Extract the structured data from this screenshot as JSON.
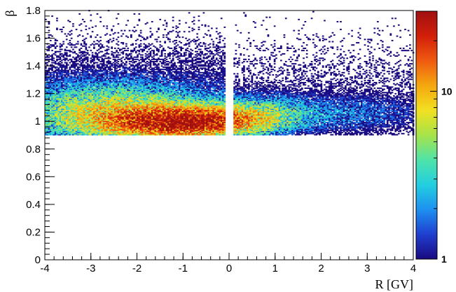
{
  "chart_data": {
    "type": "heatmap",
    "title": "",
    "xlabel": "R [GV]",
    "ylabel": "β",
    "xlim": [
      -4,
      4
    ],
    "ylim": [
      0,
      1.8
    ],
    "x_ticks": [
      -4,
      -3,
      -2,
      -1,
      0,
      1,
      2,
      3,
      4
    ],
    "y_ticks": [
      0,
      0.2,
      0.4,
      0.6,
      0.8,
      1,
      1.2,
      1.4,
      1.6,
      1.8
    ],
    "x_tick_labels": [
      "-4",
      "-3",
      "-2",
      "-1",
      "0",
      "1",
      "2",
      "3",
      "4"
    ],
    "y_tick_labels": [
      "0",
      "0.2",
      "0.4",
      "0.6",
      "0.8",
      "1",
      "1.2",
      "1.4",
      "1.6",
      "1.8"
    ],
    "z_scale": "log",
    "z_range": [
      1,
      30
    ],
    "colorbar_ticks": [
      1,
      10
    ],
    "colorbar_tick_labels": [
      "1",
      "10"
    ],
    "colormap": [
      "#1a0a80",
      "#1f3fd0",
      "#1e90f0",
      "#22cfe0",
      "#4fe3a8",
      "#a6e34a",
      "#f2e020",
      "#f5a80f",
      "#ef5a10",
      "#d21f0a",
      "#a01010"
    ],
    "data_cutoff_beta": 0.9,
    "gap_range_R": [
      -0.05,
      0.08
    ],
    "density_clusters": [
      {
        "R": -1.0,
        "beta": 1.0,
        "sigma_R": 0.9,
        "sigma_beta": 0.06,
        "peak_count": 30
      },
      {
        "R": -2.5,
        "beta": 1.05,
        "sigma_R": 1.2,
        "sigma_beta": 0.12,
        "peak_count": 8
      },
      {
        "R": 0.6,
        "beta": 1.05,
        "sigma_R": 0.7,
        "sigma_beta": 0.08,
        "peak_count": 4
      },
      {
        "R": 2.5,
        "beta": 1.05,
        "sigma_R": 1.4,
        "sigma_beta": 0.1,
        "peak_count": 1.5
      }
    ]
  }
}
